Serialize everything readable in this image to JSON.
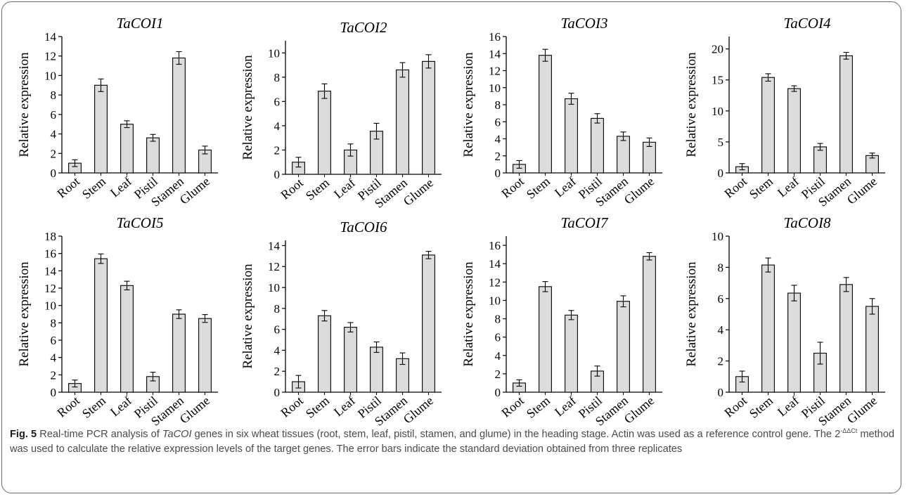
{
  "colors": {
    "bar_fill": "#dcdcdc",
    "bar_stroke": "#000000",
    "axis": "#000000",
    "frame": "#6b6b6b",
    "caption_text": "#4a4a4a"
  },
  "chart_data": [
    {
      "type": "bar",
      "title": "TaCOI1",
      "ylabel": "Relative expression",
      "xlabel": "",
      "categories": [
        "Root",
        "Stem",
        "Leaf",
        "Pistil",
        "Stamen",
        "Glume"
      ],
      "ylim": [
        0,
        14
      ],
      "yticks": [
        0,
        2,
        4,
        6,
        8,
        10,
        12,
        14
      ],
      "values": [
        1.0,
        9.0,
        5.0,
        3.6,
        11.8,
        2.35
      ],
      "errors": [
        0.35,
        0.65,
        0.35,
        0.35,
        0.65,
        0.4
      ]
    },
    {
      "type": "bar",
      "title": "TaCOI2",
      "ylabel": "Relative expression",
      "xlabel": "",
      "categories": [
        "Root",
        "Stem",
        "Leaf",
        "Pistil",
        "Stamen",
        "Glume"
      ],
      "ylim": [
        0,
        11
      ],
      "yticks": [
        0,
        2,
        4,
        6,
        8,
        10
      ],
      "values": [
        1.0,
        6.85,
        2.0,
        3.55,
        8.6,
        9.3
      ],
      "errors": [
        0.4,
        0.6,
        0.5,
        0.65,
        0.6,
        0.55
      ]
    },
    {
      "type": "bar",
      "title": "TaCOI3",
      "ylabel": "Relative expression",
      "xlabel": "",
      "categories": [
        "Root",
        "Stem",
        "Leaf",
        "Pistil",
        "Stamen",
        "Glume"
      ],
      "ylim": [
        0,
        16
      ],
      "yticks": [
        0,
        2,
        4,
        6,
        8,
        10,
        12,
        14,
        16
      ],
      "values": [
        1.0,
        13.8,
        8.7,
        6.4,
        4.3,
        3.6
      ],
      "errors": [
        0.45,
        0.7,
        0.65,
        0.55,
        0.5,
        0.5
      ]
    },
    {
      "type": "bar",
      "title": "TaCOI4",
      "ylabel": "Relative expression",
      "xlabel": "",
      "categories": [
        "Root",
        "Stem",
        "Leaf",
        "Pistil",
        "Stamen",
        "Glume"
      ],
      "ylim": [
        0,
        22
      ],
      "yticks": [
        0,
        5,
        10,
        15,
        20
      ],
      "values": [
        1.0,
        15.4,
        13.6,
        4.2,
        18.9,
        2.8
      ],
      "errors": [
        0.5,
        0.6,
        0.45,
        0.55,
        0.55,
        0.4
      ]
    },
    {
      "type": "bar",
      "title": "TaCOI5",
      "ylabel": "Relative expression",
      "xlabel": "",
      "categories": [
        "Root",
        "Stem",
        "Leaf",
        "Pistil",
        "Stamen",
        "Glume"
      ],
      "ylim": [
        0,
        18
      ],
      "yticks": [
        0,
        2,
        4,
        6,
        8,
        10,
        12,
        14,
        16,
        18
      ],
      "values": [
        1.0,
        15.4,
        12.3,
        1.8,
        9.0,
        8.5
      ],
      "errors": [
        0.4,
        0.55,
        0.5,
        0.5,
        0.5,
        0.45
      ]
    },
    {
      "type": "bar",
      "title": "TaCOI6",
      "ylabel": "Relative expression",
      "xlabel": "",
      "categories": [
        "Root",
        "Stem",
        "Leaf",
        "Pistil",
        "Stamen",
        "Glume"
      ],
      "ylim": [
        0,
        14.5
      ],
      "yticks": [
        0,
        2,
        4,
        6,
        8,
        10,
        12,
        14
      ],
      "values": [
        1.0,
        7.3,
        6.2,
        4.3,
        3.2,
        13.1
      ],
      "errors": [
        0.6,
        0.5,
        0.45,
        0.5,
        0.55,
        0.35
      ]
    },
    {
      "type": "bar",
      "title": "TaCOI7",
      "ylabel": "Relative expression",
      "xlabel": "",
      "categories": [
        "Root",
        "Stem",
        "Leaf",
        "Pistil",
        "Stamen",
        "Glume"
      ],
      "ylim": [
        0,
        17
      ],
      "yticks": [
        0,
        2,
        4,
        6,
        8,
        10,
        12,
        14,
        16
      ],
      "values": [
        1.0,
        11.5,
        8.4,
        2.3,
        9.9,
        14.8
      ],
      "errors": [
        0.35,
        0.55,
        0.5,
        0.55,
        0.6,
        0.4
      ]
    },
    {
      "type": "bar",
      "title": "TaCOI8",
      "ylabel": "Relative expression",
      "xlabel": "",
      "categories": [
        "Root",
        "Stem",
        "Leaf",
        "Pistil",
        "Stamen",
        "Glume"
      ],
      "ylim": [
        0,
        10
      ],
      "yticks": [
        0,
        2,
        4,
        6,
        8,
        10
      ],
      "values": [
        1.0,
        8.15,
        6.35,
        2.5,
        6.9,
        5.5
      ],
      "errors": [
        0.35,
        0.45,
        0.5,
        0.7,
        0.45,
        0.5
      ]
    }
  ],
  "caption": {
    "fig_label": "Fig. 5",
    "part1": " Real-time PCR analysis of ",
    "gene": "TaCOI",
    "part2": " genes in six wheat tissues (root, stem, leaf, pistil, stamen, and glume) in the heading stage. Actin was used as a reference control gene. The 2",
    "superscript": "-ΔΔCt",
    "part3": " method was used to calculate the relative expression levels of the target genes. The error bars indicate the standard deviation obtained from three replicates"
  }
}
